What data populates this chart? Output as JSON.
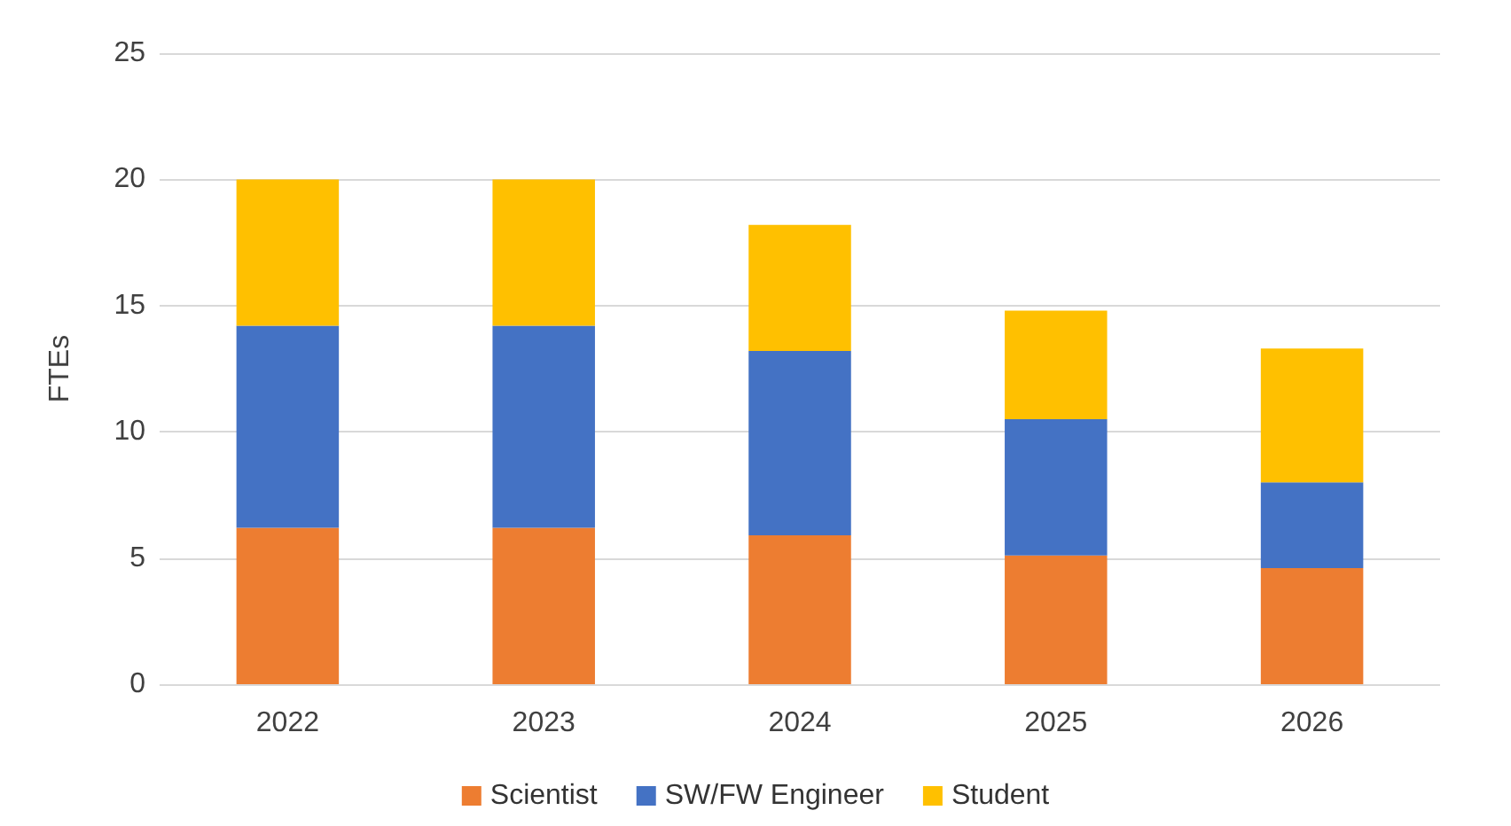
{
  "chart_data": {
    "type": "bar",
    "stacked": true,
    "ylabel": "FTEs",
    "categories": [
      "2022",
      "2023",
      "2024",
      "2025",
      "2026"
    ],
    "series": [
      {
        "name": "Scientist",
        "color": "#ed7d31",
        "values": [
          6.2,
          6.2,
          5.9,
          5.1,
          4.6
        ]
      },
      {
        "name": "SW/FW Engineer",
        "color": "#4472c4",
        "values": [
          8,
          8,
          7.3,
          5.4,
          3.4
        ]
      },
      {
        "name": "Student",
        "color": "#ffc000",
        "values": [
          5.8,
          5.8,
          5,
          4.3,
          5.3
        ]
      }
    ],
    "ylim": [
      0,
      25
    ],
    "yticks": [
      0,
      5,
      10,
      15,
      20,
      25
    ],
    "grid": "y",
    "legend": "bottom"
  }
}
